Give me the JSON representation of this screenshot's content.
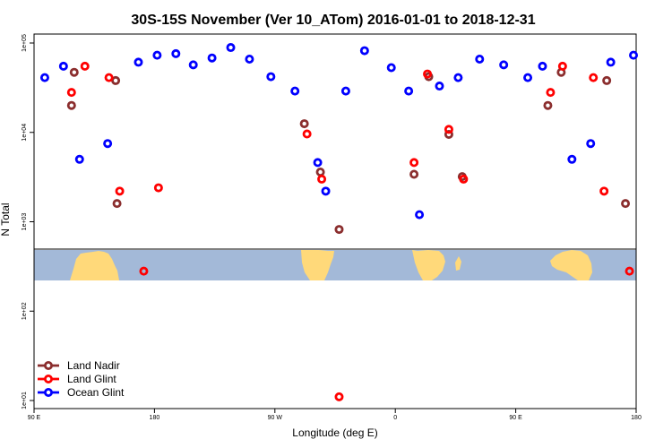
{
  "chart_data": {
    "type": "scatter",
    "title": "30S-15S November (Ver 10_ATom)   2016-01-01 to 2018-12-31",
    "xlabel": "Longitude (deg E)",
    "ylabel": "N Total",
    "x_scale": "linear",
    "y_scale": "log",
    "xlim": [
      90,
      540
    ],
    "ylim": [
      8,
      150000
    ],
    "x_ticks": [
      {
        "value": 90,
        "label": "90 E"
      },
      {
        "value": 180,
        "label": "180"
      },
      {
        "value": 270,
        "label": "90 W"
      },
      {
        "value": 360,
        "label": "0"
      },
      {
        "value": 450,
        "label": "90 E"
      },
      {
        "value": 540,
        "label": "180"
      }
    ],
    "y_ticks": [
      {
        "value": 10,
        "label": "1e+01"
      },
      {
        "value": 100,
        "label": "1e+02"
      },
      {
        "value": 1000,
        "label": "1e+03"
      },
      {
        "value": 10000,
        "label": "1e+04"
      },
      {
        "value": 100000,
        "label": "1e+05"
      }
    ],
    "grid": false,
    "legend_position": "bottom-left",
    "map_strip": {
      "shown": true,
      "ocean_color": "#A3B9D8",
      "land_color": "#FFD97A"
    },
    "series": [
      {
        "name": "Land Nadir",
        "color": "#8B2E2E",
        "points": [
          [
            118,
            20000
          ],
          [
            120,
            47000
          ],
          [
            151,
            38000
          ],
          [
            152,
            1600
          ],
          [
            292,
            12500
          ],
          [
            304,
            3600
          ],
          [
            318,
            820
          ],
          [
            374,
            3400
          ],
          [
            385,
            42000
          ],
          [
            400,
            9500
          ],
          [
            410,
            3200
          ],
          [
            474,
            20000
          ],
          [
            484,
            47000
          ],
          [
            518,
            38000
          ],
          [
            532,
            1600
          ]
        ]
      },
      {
        "name": "Land Glint",
        "color": "#FF0000",
        "points": [
          [
            118,
            28000
          ],
          [
            128,
            55000
          ],
          [
            146,
            41000
          ],
          [
            154,
            2200
          ],
          [
            172,
            280
          ],
          [
            183,
            2400
          ],
          [
            294,
            9600
          ],
          [
            305,
            3000
          ],
          [
            318,
            11
          ],
          [
            374,
            4600
          ],
          [
            384,
            45000
          ],
          [
            400,
            10800
          ],
          [
            411,
            3000
          ],
          [
            476,
            28000
          ],
          [
            485,
            55000
          ],
          [
            508,
            41000
          ],
          [
            516,
            2200
          ],
          [
            535,
            280
          ]
        ]
      },
      {
        "name": "Ocean Glint",
        "color": "#0000FF",
        "points": [
          [
            98,
            41000
          ],
          [
            112,
            55000
          ],
          [
            124,
            5000
          ],
          [
            145,
            7500
          ],
          [
            168,
            61000
          ],
          [
            182,
            73000
          ],
          [
            196,
            76000
          ],
          [
            209,
            57000
          ],
          [
            223,
            68000
          ],
          [
            237,
            89000
          ],
          [
            251,
            66000
          ],
          [
            267,
            42000
          ],
          [
            285,
            29000
          ],
          [
            302,
            4600
          ],
          [
            308,
            2200
          ],
          [
            323,
            29000
          ],
          [
            337,
            82000
          ],
          [
            357,
            53000
          ],
          [
            370,
            29000
          ],
          [
            378,
            1200
          ],
          [
            393,
            33000
          ],
          [
            407,
            41000
          ],
          [
            423,
            66000
          ],
          [
            441,
            57000
          ],
          [
            459,
            41000
          ],
          [
            470,
            55000
          ],
          [
            492,
            5000
          ],
          [
            506,
            7500
          ],
          [
            521,
            61000
          ],
          [
            538,
            73000
          ]
        ]
      }
    ]
  }
}
